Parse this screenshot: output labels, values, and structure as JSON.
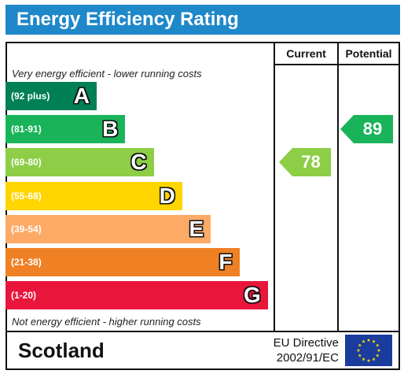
{
  "title": "Energy Efficiency Rating",
  "columns": {
    "current": "Current",
    "potential": "Potential"
  },
  "top_note": "Very energy efficient - lower running costs",
  "bottom_note": "Not energy efficient - higher running costs",
  "footer": {
    "region": "Scotland",
    "directive_line1": "EU Directive",
    "directive_line2": "2002/91/EC"
  },
  "chart_data": {
    "type": "bar",
    "title": "Energy Efficiency Rating",
    "bands": [
      {
        "letter": "A",
        "range": "(92 plus)",
        "min": 92,
        "max": 100,
        "color": "#008054"
      },
      {
        "letter": "B",
        "range": "(81-91)",
        "min": 81,
        "max": 91,
        "color": "#19b459"
      },
      {
        "letter": "C",
        "range": "(69-80)",
        "min": 69,
        "max": 80,
        "color": "#8dce46"
      },
      {
        "letter": "D",
        "range": "(55-68)",
        "min": 55,
        "max": 68,
        "color": "#ffd500"
      },
      {
        "letter": "E",
        "range": "(39-54)",
        "min": 39,
        "max": 54,
        "color": "#fcaa65"
      },
      {
        "letter": "F",
        "range": "(21-38)",
        "min": 21,
        "max": 38,
        "color": "#ef8023"
      },
      {
        "letter": "G",
        "range": "(1-20)",
        "min": 1,
        "max": 20,
        "color": "#e9153b"
      }
    ],
    "current": {
      "value": 78,
      "band": "C",
      "color": "#8dce46"
    },
    "potential": {
      "value": 89,
      "band": "B",
      "color": "#19b459"
    }
  }
}
